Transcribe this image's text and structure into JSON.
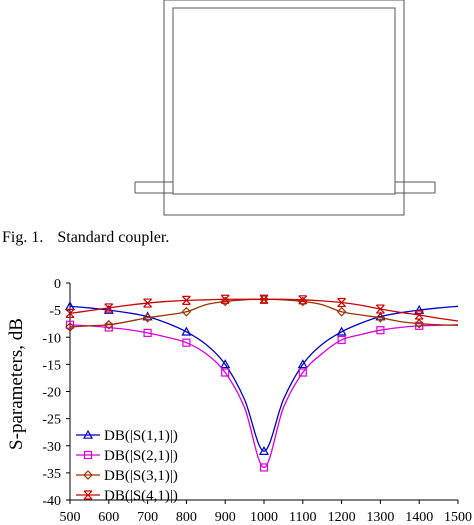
{
  "figure1": {
    "caption_number": "Fig. 1.",
    "caption_text": "Standard coupler."
  },
  "chart_data": {
    "type": "line",
    "ylabel": "S-parameters, dB",
    "xlabel": "",
    "xlim": [
      500,
      1500
    ],
    "ylim": [
      -40,
      0
    ],
    "x_ticks": [
      "500",
      "600",
      "700",
      "800",
      "900",
      "1000",
      "1100",
      "1200",
      "1300",
      "1400",
      "1500"
    ],
    "y_ticks": [
      "0",
      "-5",
      "-10",
      "-15",
      "-20",
      "-25",
      "-30",
      "-35",
      "-40"
    ],
    "grid": false,
    "legend_position": "bottom-left",
    "series": [
      {
        "name": "DB(|S(1,1)|)",
        "color": "#0000cc",
        "marker": "triangle",
        "x": [
          500,
          550,
          600,
          650,
          700,
          750,
          800,
          850,
          900,
          950,
          1000,
          1050,
          1100,
          1150,
          1200,
          1250,
          1300,
          1350,
          1400,
          1450,
          1500
        ],
        "y": [
          -4.3,
          -4.6,
          -5.0,
          -5.5,
          -6.2,
          -7.4,
          -9.0,
          -11.3,
          -15.0,
          -21.5,
          -31.0,
          -21.5,
          -15.0,
          -11.3,
          -9.0,
          -7.4,
          -6.2,
          -5.5,
          -5.0,
          -4.6,
          -4.3
        ],
        "marker_x": [
          500,
          600,
          700,
          800,
          900,
          1000,
          1100,
          1200,
          1300,
          1400
        ]
      },
      {
        "name": "DB(|S(2,1)|)",
        "color": "#dd00dd",
        "marker": "square",
        "x": [
          500,
          550,
          600,
          650,
          700,
          750,
          800,
          850,
          900,
          950,
          1000,
          1050,
          1100,
          1150,
          1200,
          1250,
          1300,
          1350,
          1400,
          1450,
          1500
        ],
        "y": [
          -7.7,
          -7.9,
          -8.2,
          -8.6,
          -9.2,
          -10.0,
          -11.0,
          -13.0,
          -16.5,
          -23.0,
          -34.0,
          -23.0,
          -16.5,
          -13.0,
          -10.5,
          -9.5,
          -8.7,
          -8.2,
          -7.9,
          -7.8,
          -7.7
        ],
        "marker_x": [
          500,
          600,
          700,
          800,
          900,
          1000,
          1100,
          1200,
          1300,
          1400
        ]
      },
      {
        "name": "DB(|S(3,1)|)",
        "color": "#993300",
        "marker": "diamond",
        "x": [
          500,
          550,
          600,
          650,
          700,
          750,
          800,
          850,
          900,
          950,
          1000,
          1050,
          1100,
          1150,
          1200,
          1250,
          1300,
          1350,
          1400,
          1450,
          1500
        ],
        "y": [
          -8.1,
          -7.9,
          -7.7,
          -7.1,
          -6.4,
          -5.9,
          -5.3,
          -4.0,
          -3.4,
          -3.1,
          -3.0,
          -3.1,
          -3.4,
          -4.0,
          -5.3,
          -5.9,
          -6.4,
          -7.1,
          -7.5,
          -7.7,
          -7.8
        ],
        "marker_x": [
          500,
          600,
          700,
          800,
          900,
          1000,
          1100,
          1200,
          1300,
          1400
        ]
      },
      {
        "name": "DB(|S(4,1)|)",
        "color": "#cc0000",
        "marker": "asterisk",
        "x": [
          500,
          550,
          600,
          650,
          700,
          750,
          800,
          850,
          900,
          950,
          1000,
          1050,
          1100,
          1150,
          1200,
          1250,
          1300,
          1350,
          1400,
          1450,
          1500
        ],
        "y": [
          -5.6,
          -5.1,
          -4.6,
          -4.1,
          -3.7,
          -3.4,
          -3.2,
          -3.1,
          -3.0,
          -3.0,
          -3.0,
          -3.0,
          -3.1,
          -3.3,
          -3.6,
          -4.1,
          -4.8,
          -5.4,
          -5.9,
          -6.5,
          -7.0
        ],
        "marker_x": [
          500,
          600,
          700,
          800,
          900,
          1000,
          1100,
          1200,
          1300,
          1400
        ]
      }
    ]
  }
}
